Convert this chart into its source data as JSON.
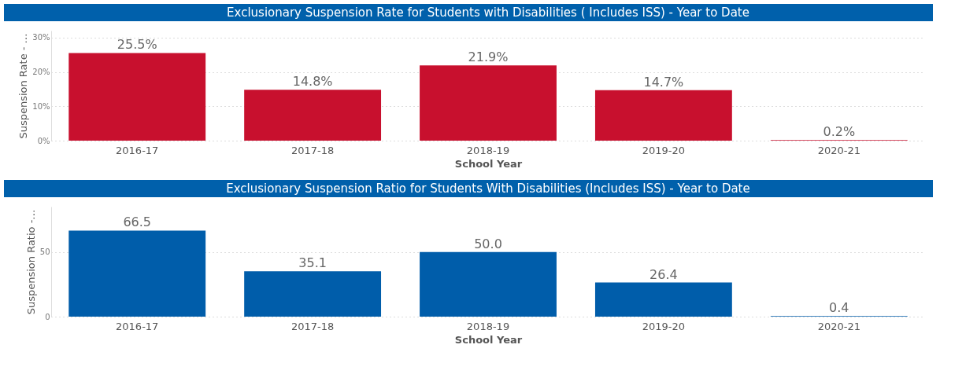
{
  "chart_data": [
    {
      "type": "bar",
      "title": "Exclusionary Suspension Rate for Students with Disabilities ( Includes ISS) - Year to Date",
      "xlabel": "School Year",
      "ylabel": "Suspension Rate - …",
      "categories": [
        "2016-17",
        "2017-18",
        "2018-19",
        "2019-20",
        "2020-21"
      ],
      "values": [
        25.5,
        14.8,
        21.9,
        14.7,
        0.2
      ],
      "value_labels": [
        "25.5%",
        "14.8%",
        "21.9%",
        "14.7%",
        "0.2%"
      ],
      "color": "#c8102e",
      "ylim": [
        0,
        32
      ],
      "yticks": [
        {
          "value": 0,
          "label": "0%"
        },
        {
          "value": 10,
          "label": "10%"
        },
        {
          "value": 20,
          "label": "20%"
        },
        {
          "value": 30,
          "label": "30%"
        }
      ],
      "grid": "y"
    },
    {
      "type": "bar",
      "title": "Exclusionary Suspension Ratio for Students With Disabilities (Includes ISS) - Year to Date",
      "xlabel": "School Year",
      "ylabel": "Suspension Ratio -…",
      "categories": [
        "2016-17",
        "2017-18",
        "2018-19",
        "2019-20",
        "2020-21"
      ],
      "values": [
        66.5,
        35.1,
        50.0,
        26.4,
        0.4
      ],
      "value_labels": [
        "66.5",
        "35.1",
        "50.0",
        "26.4",
        "0.4"
      ],
      "color": "#005daa",
      "ylim": [
        0,
        85
      ],
      "yticks": [
        0,
        50
      ],
      "grid": "y"
    }
  ]
}
